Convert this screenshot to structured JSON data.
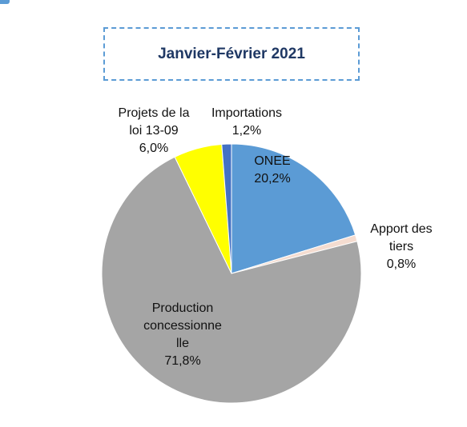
{
  "chart_data": {
    "type": "pie",
    "title": "Janvier-Février 2021",
    "start_angle_deg": 0,
    "direction": "clockwise",
    "slices": [
      {
        "name_lines": [
          "ONEE"
        ],
        "value_label": "20,2%",
        "value": 20.2,
        "color": "#5b9bd5"
      },
      {
        "name_lines": [
          "Apport des",
          "tiers"
        ],
        "value_label": "0,8%",
        "value": 0.8,
        "color": "#f4dcd0"
      },
      {
        "name_lines": [
          "Production",
          "concessionne",
          "lle"
        ],
        "value_label": "71,8%",
        "value": 71.8,
        "color": "#a5a5a5"
      },
      {
        "name_lines": [
          "Projets de la",
          "loi 13-09"
        ],
        "value_label": "6,0%",
        "value": 6.0,
        "color": "#ffff00"
      },
      {
        "name_lines": [
          "Importations"
        ],
        "value_label": "1,2%",
        "value": 1.2,
        "color": "#4472c4"
      }
    ]
  }
}
